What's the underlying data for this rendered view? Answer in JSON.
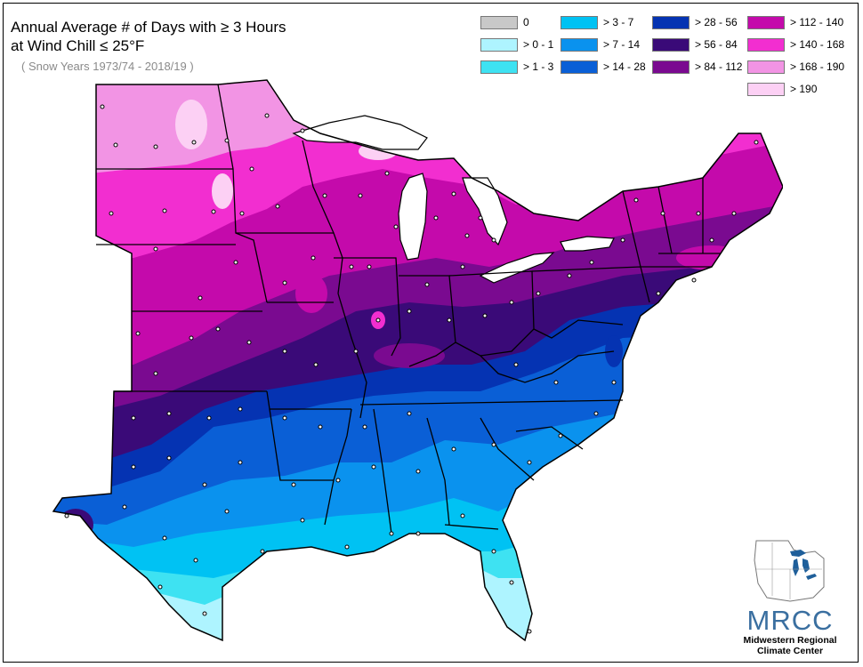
{
  "title_line1": "Annual Average # of Days with ≥ 3 Hours",
  "title_line2": " at Wind Chill ≤ 25°F",
  "subtitle": "( Snow Years 1973/74 - 2018/19 )",
  "legend": [
    {
      "label": "0",
      "color": "#c8c8c8"
    },
    {
      "label": "> 0 - 1",
      "color": "#aef4ff"
    },
    {
      "label": "> 1 - 3",
      "color": "#3ee2f2"
    },
    {
      "label": "> 3 - 7",
      "color": "#00c2f3"
    },
    {
      "label": "> 7 - 14",
      "color": "#0a92ee"
    },
    {
      "label": "> 14 - 28",
      "color": "#0a5fd6"
    },
    {
      "label": "> 28 - 56",
      "color": "#0533b2"
    },
    {
      "label": "> 56 - 84",
      "color": "#3a0a78"
    },
    {
      "label": "> 84 - 112",
      "color": "#7a0a90"
    },
    {
      "label": "> 112 - 140",
      "color": "#c40aab"
    },
    {
      "label": "> 140 - 168",
      "color": "#f22ed0"
    },
    {
      "label": "> 168 - 190",
      "color": "#f294e4"
    },
    {
      "label": "> 190",
      "color": "#fcd0f4"
    }
  ],
  "logo": {
    "name": "MRCC",
    "line1": "Midwestern Regional",
    "line2": "Climate Center"
  }
}
